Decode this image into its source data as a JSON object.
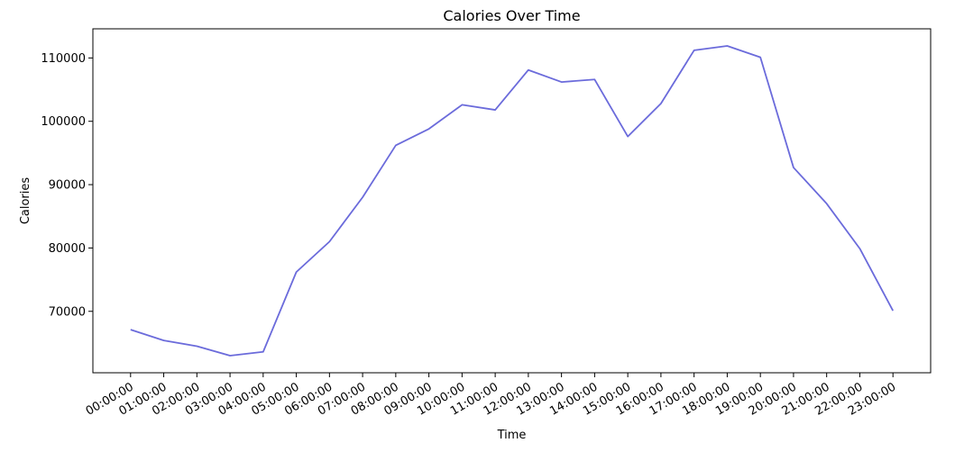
{
  "chart_data": {
    "type": "line",
    "title": "Calories Over Time",
    "xlabel": "Time",
    "ylabel": "Calories",
    "categories": [
      "00:00:00",
      "01:00:00",
      "02:00:00",
      "03:00:00",
      "04:00:00",
      "05:00:00",
      "06:00:00",
      "07:00:00",
      "08:00:00",
      "09:00:00",
      "10:00:00",
      "11:00:00",
      "12:00:00",
      "13:00:00",
      "14:00:00",
      "15:00:00",
      "16:00:00",
      "17:00:00",
      "18:00:00",
      "19:00:00",
      "20:00:00",
      "21:00:00",
      "22:00:00",
      "23:00:00"
    ],
    "series": [
      {
        "values": [
          67100,
          65400,
          64500,
          63000,
          63600,
          76200,
          81000,
          88000,
          96200,
          98800,
          102600,
          101800,
          108100,
          106200,
          106600,
          97600,
          102800,
          111200,
          111900,
          110100,
          92700,
          87000,
          79900,
          70100
        ],
        "color": "#6b6bdb"
      }
    ],
    "yticks": [
      70000,
      80000,
      90000,
      100000,
      110000
    ],
    "ylim": [
      60300,
      114600
    ],
    "grid": false,
    "legend": "none"
  }
}
